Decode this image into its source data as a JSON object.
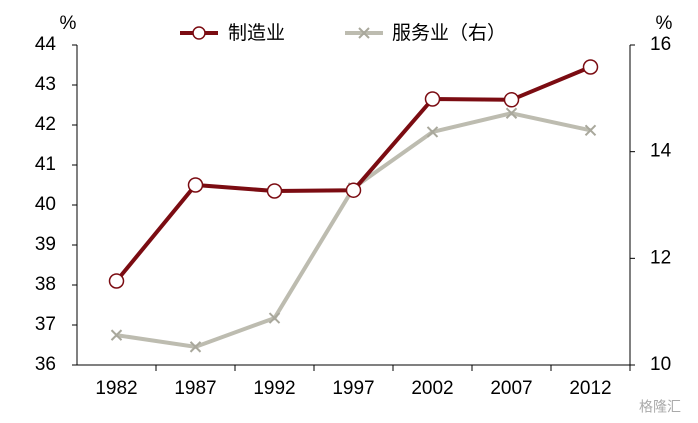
{
  "chart_data": {
    "type": "line",
    "categories": [
      "1982",
      "1987",
      "1992",
      "1997",
      "2002",
      "2007",
      "2012"
    ],
    "series": [
      {
        "name": "制造业",
        "color": "#7b0c12",
        "values": [
          38.1,
          40.5,
          40.35,
          40.37,
          42.65,
          42.63,
          43.45
        ]
      },
      {
        "name": "服务业（右）",
        "color": "#bdbcb0",
        "axis": "y2",
        "values": [
          10.56,
          10.34,
          10.88,
          13.32,
          14.37,
          14.72,
          14.4
        ]
      }
    ],
    "ylim": [
      36,
      44
    ],
    "yticks": [
      36,
      37,
      38,
      39,
      40,
      41,
      42,
      43,
      44
    ],
    "y2lim": [
      10,
      16
    ],
    "y2ticks": [
      10,
      12,
      14,
      16
    ],
    "y_unit": "%",
    "y2_unit": "%",
    "watermark": "格隆汇"
  }
}
